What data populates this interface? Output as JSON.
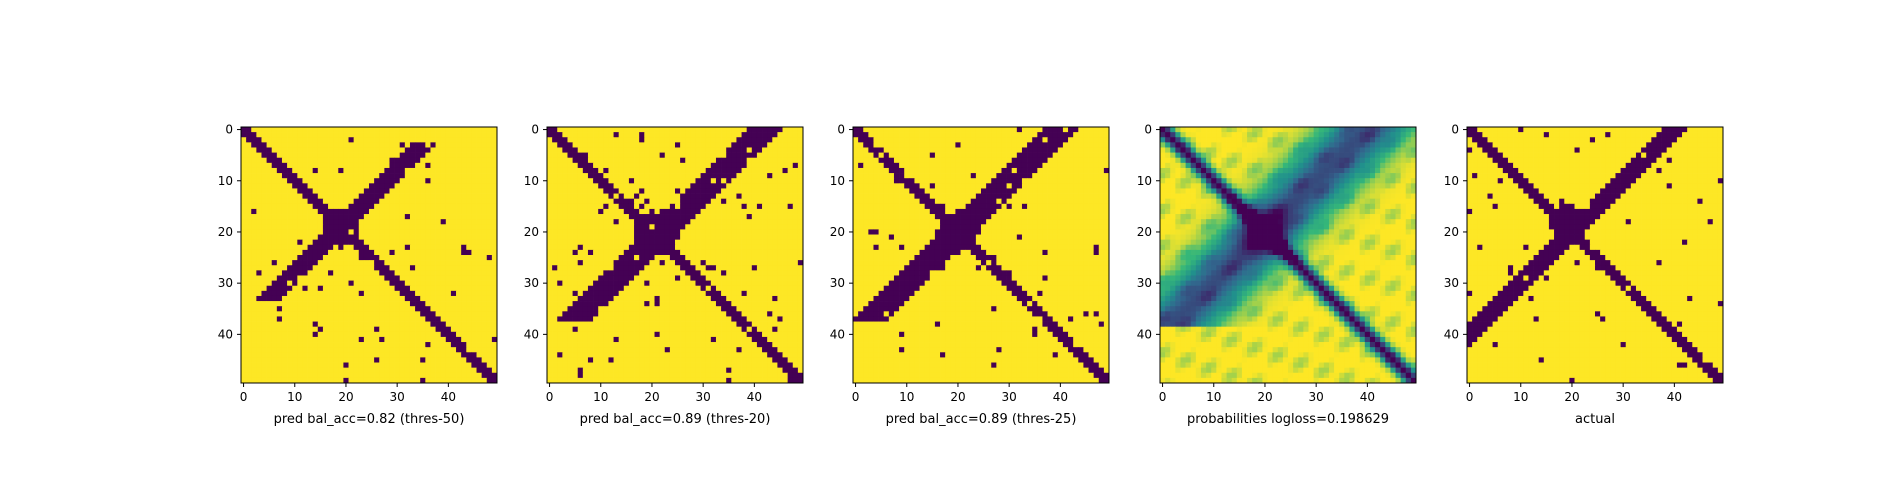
{
  "figure": {
    "background": "#ffffff",
    "cmap": {
      "low": "#440154",
      "mid_dark": "#31688e",
      "mid": "#21918c",
      "mid_light": "#35b779",
      "high": "#fde725"
    }
  },
  "chart_data": [
    {
      "type": "heatmap",
      "kind": "binary",
      "title": "",
      "xlabel": "pred bal_acc=0.82 (thres-50)",
      "grid_size": 50,
      "xticks": [
        0,
        10,
        20,
        30,
        40
      ],
      "yticks": [
        0,
        10,
        20,
        30,
        40
      ],
      "xlim": [
        -0.5,
        49.5
      ],
      "ylim": [
        49.5,
        -0.5
      ],
      "pattern": {
        "diag_halfwidth": 1.3,
        "anti_center": 19,
        "anti_halfwidth": 1.2,
        "anti_rows": [
          3,
          33
        ],
        "blob_center": [
          19,
          19
        ],
        "blob_radius": 3.6,
        "noise": 0.02,
        "seed": 11
      }
    },
    {
      "type": "heatmap",
      "kind": "binary",
      "title": "",
      "xlabel": "pred bal_acc=0.89 (thres-20)",
      "grid_size": 50,
      "xticks": [
        0,
        10,
        20,
        30,
        40
      ],
      "yticks": [
        0,
        10,
        20,
        30,
        40
      ],
      "xlim": [
        -0.5,
        49.5
      ],
      "ylim": [
        49.5,
        -0.5
      ],
      "pattern": {
        "diag_halfwidth": 1.8,
        "anti_center": 21,
        "anti_halfwidth": 1.7,
        "anti_rows": [
          0,
          37
        ],
        "blob_center": [
          20,
          21
        ],
        "blob_radius": 4.4,
        "noise": 0.03,
        "seed": 23
      }
    },
    {
      "type": "heatmap",
      "kind": "binary",
      "title": "",
      "xlabel": "pred bal_acc=0.89 (thres-25)",
      "grid_size": 50,
      "xticks": [
        0,
        10,
        20,
        30,
        40
      ],
      "yticks": [
        0,
        10,
        20,
        30,
        40
      ],
      "xlim": [
        -0.5,
        49.5
      ],
      "ylim": [
        49.5,
        -0.5
      ],
      "pattern": {
        "diag_halfwidth": 1.6,
        "anti_center": 20,
        "anti_halfwidth": 1.5,
        "anti_rows": [
          0,
          37
        ],
        "blob_center": [
          20,
          20
        ],
        "blob_radius": 4.0,
        "noise": 0.025,
        "seed": 37
      }
    },
    {
      "type": "heatmap",
      "kind": "continuous",
      "title": "",
      "xlabel": "probabilities logloss=0.198629",
      "grid_size": 50,
      "xticks": [
        0,
        10,
        20,
        30,
        40
      ],
      "yticks": [
        0,
        10,
        20,
        30,
        40
      ],
      "xlim": [
        -0.5,
        49.5
      ],
      "ylim": [
        49.5,
        -0.5
      ],
      "pattern": {
        "diag_halfwidth": 1.4,
        "anti_center": 20,
        "anti_halfwidth": 3.0,
        "anti_rows": [
          0,
          38
        ],
        "blob_center": [
          20,
          20
        ],
        "blob_radius": 3.0,
        "noise": 0.0,
        "seed": 53
      }
    },
    {
      "type": "heatmap",
      "kind": "binary",
      "title": "",
      "xlabel": "actual",
      "grid_size": 50,
      "xticks": [
        0,
        10,
        20,
        30,
        40
      ],
      "yticks": [
        0,
        10,
        20,
        30,
        40
      ],
      "xlim": [
        -0.5,
        49.5
      ],
      "ylim": [
        49.5,
        -0.5
      ],
      "pattern": {
        "diag_halfwidth": 1.5,
        "anti_center": 20,
        "anti_halfwidth": 1.4,
        "anti_rows": [
          0,
          45
        ],
        "blob_center": [
          18,
          19
        ],
        "blob_radius": 3.2,
        "noise": 0.02,
        "seed": 71
      }
    }
  ]
}
